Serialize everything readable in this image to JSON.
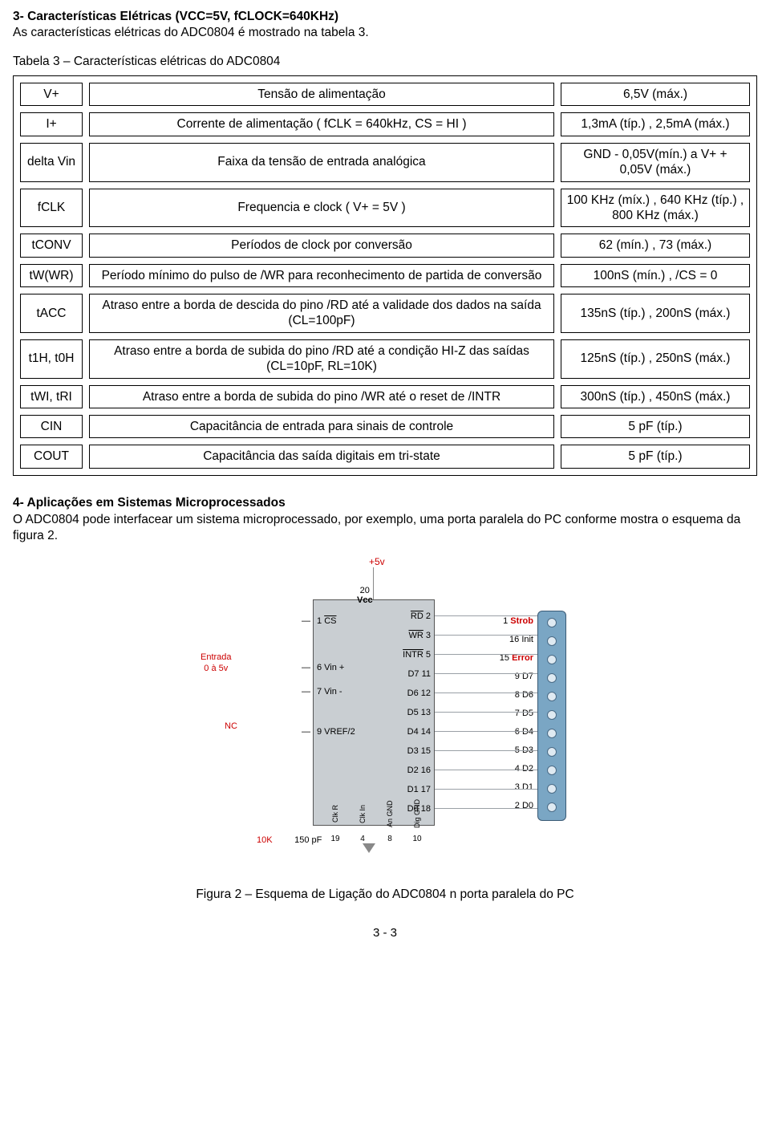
{
  "section3": {
    "title": "3- Características Elétricas (VCC=5V, fCLOCK=640KHz)",
    "subtitle": "As características elétricas do ADC0804 é mostrado na tabela 3.",
    "tableCaption": "Tabela 3 – Características elétricas do ADC0804"
  },
  "table": {
    "colWidths": {
      "symbol": 78,
      "value": 236
    },
    "rows": [
      {
        "sym": "V+",
        "desc": "Tensão de alimentação",
        "val": "6,5V (máx.)"
      },
      {
        "sym": "I+",
        "desc": "Corrente de alimentação ( fCLK = 640kHz, CS = HI )",
        "val": "1,3mA (típ.) , 2,5mA (máx.)"
      },
      {
        "sym": "delta Vin",
        "desc": "Faixa da tensão de entrada analógica",
        "val": "GND - 0,05V(mín.) a V+ + 0,05V (máx.)"
      },
      {
        "sym": "fCLK",
        "desc": "Frequencia e clock ( V+ = 5V )",
        "val": "100 KHz (míx.) , 640 KHz (típ.) , 800 KHz (máx.)"
      },
      {
        "sym": "tCONV",
        "desc": "Períodos de clock por conversão",
        "val": "62 (mín.) , 73 (máx.)"
      },
      {
        "sym": "tW(WR)",
        "desc": "Período mínimo do pulso de /WR para reconhecimento de partida de conversão",
        "val": "100nS (mín.) , /CS = 0"
      },
      {
        "sym": "tACC",
        "desc": "Atraso entre a borda de descida do pino /RD até a validade dos dados na saída (CL=100pF)",
        "val": "135nS (típ.) , 200nS (máx.)"
      },
      {
        "sym": "t1H, t0H",
        "desc": "Atraso entre a borda de subida do pino /RD até a condição HI-Z das saídas (CL=10pF, RL=10K)",
        "val": "125nS (típ.) , 250nS (máx.)"
      },
      {
        "sym": "tWI, tRI",
        "desc": "Atraso entre a borda de subida do pino /WR até o reset de /INTR",
        "val": "300nS (típ.) , 450nS (máx.)"
      },
      {
        "sym": "CIN",
        "desc": "Capacitância de entrada para sinais de controle",
        "val": "5 pF (típ.)"
      },
      {
        "sym": "COUT",
        "desc": "Capacitância das saída digitais em tri-state",
        "val": "5 pF (típ.)"
      }
    ]
  },
  "section4": {
    "title": "4- Aplicações em Sistemas Microprocessados",
    "body": "O ADC0804 pode interfacear um sistema microprocessado, por exemplo, uma porta paralela do PC conforme mostra o esquema da figura 2."
  },
  "schematic": {
    "vplus": "+5v",
    "entradaLine1": "Entrada",
    "entradaLine2": "0 à 5v",
    "nc": "NC",
    "r10k": "10K",
    "cap": "150 pF",
    "chipLeftPins": [
      {
        "num": "1",
        "name": "CS",
        "bar": true
      },
      {
        "num": "6",
        "name": "Vin +",
        "bar": false
      },
      {
        "num": "7",
        "name": "Vin -",
        "bar": false
      },
      {
        "num": "9",
        "name": "VREF/2",
        "bar": false
      }
    ],
    "chipTop": {
      "num": "20",
      "name": "Vcc"
    },
    "chipRightPins": [
      {
        "num": "2",
        "name": "RD",
        "bar": true
      },
      {
        "num": "3",
        "name": "WR",
        "bar": true
      },
      {
        "num": "5",
        "name": "INTR",
        "bar": true
      },
      {
        "num": "11",
        "name": "D7",
        "bar": false
      },
      {
        "num": "12",
        "name": "D6",
        "bar": false
      },
      {
        "num": "13",
        "name": "D5",
        "bar": false
      },
      {
        "num": "14",
        "name": "D4",
        "bar": false
      },
      {
        "num": "15",
        "name": "D3",
        "bar": false
      },
      {
        "num": "16",
        "name": "D2",
        "bar": false
      },
      {
        "num": "17",
        "name": "D1",
        "bar": false
      },
      {
        "num": "18",
        "name": "D0",
        "bar": false
      }
    ],
    "chipBottomPins": [
      {
        "num": "19",
        "name": "Clk R"
      },
      {
        "num": "4",
        "name": "Clk In"
      },
      {
        "num": "8",
        "name": "An GND"
      },
      {
        "num": "10",
        "name": "Dig GND"
      }
    ],
    "connLabels": [
      {
        "num": "1",
        "name": "Strob",
        "red": true
      },
      {
        "num": "16",
        "name": "Init",
        "red": false
      },
      {
        "num": "15",
        "name": "Error",
        "red": true
      },
      {
        "num": "9",
        "name": "D7",
        "red": false
      },
      {
        "num": "8",
        "name": "D6",
        "red": false
      },
      {
        "num": "7",
        "name": "D5",
        "red": false
      },
      {
        "num": "6",
        "name": "D4",
        "red": false
      },
      {
        "num": "5",
        "name": "D3",
        "red": false
      },
      {
        "num": "4",
        "name": "D2",
        "red": false
      },
      {
        "num": "3",
        "name": "D1",
        "red": false
      },
      {
        "num": "2",
        "name": "D0",
        "red": false
      }
    ]
  },
  "figCaption": "Figura 2 – Esquema de Ligação do ADC0804 n porta paralela do PC",
  "pageNumber": "3 - 3",
  "colors": {
    "text": "#000000",
    "border": "#000000",
    "chipFill": "#c9ced2",
    "connFill": "#7aa6c4",
    "red": "#cc0000"
  }
}
